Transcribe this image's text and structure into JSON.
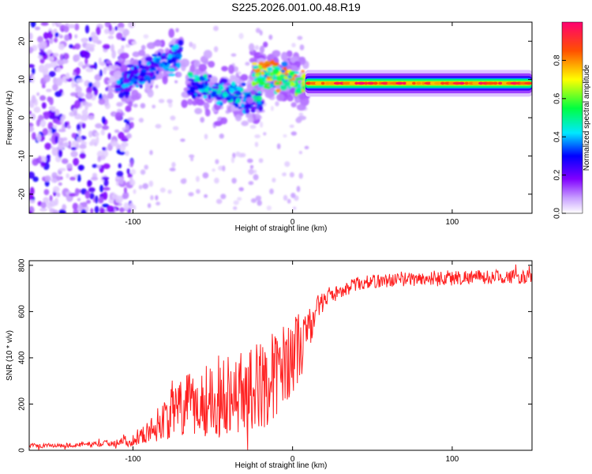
{
  "title": "S225.2026.001.00.48.R19",
  "top_chart": {
    "type": "heatmap",
    "xlabel": "Height of straight line (km)",
    "ylabel": "Frequency (Hz)",
    "xlim": [
      -165,
      150
    ],
    "ylim": [
      -25,
      25
    ],
    "xticks": [
      -100,
      0,
      100
    ],
    "yticks": [
      -20,
      -10,
      0,
      10,
      20
    ],
    "colorbar": {
      "label": "Normalized spectral amplitude",
      "range": [
        0,
        1
      ],
      "ticks": [
        0.0,
        0.2,
        0.4,
        0.6,
        0.8
      ],
      "colors": [
        "#ffffff",
        "#9a00ff",
        "#0000ff",
        "#00ffff",
        "#00ff00",
        "#ffff00",
        "#ff6600",
        "#ff0066"
      ]
    },
    "features": {
      "left_noise_region": {
        "x_range": [
          -165,
          -100
        ],
        "freq_range": [
          -25,
          25
        ],
        "amplitude": "low"
      },
      "trend_segments": [
        {
          "x_start": -110,
          "x_end": -70,
          "freq_start": 8,
          "freq_end": 17,
          "amplitude": 0.3
        },
        {
          "x_start": -65,
          "x_end": -20,
          "freq_start": 9,
          "freq_end": 4,
          "amplitude": 0.35
        },
        {
          "x_start": -25,
          "x_end": 8,
          "freq_start": 12,
          "freq_end": 9,
          "amplitude": 0.6
        }
      ],
      "stable_band": {
        "x_start": 8,
        "x_end": 150,
        "frequency": 9,
        "peak_amplitude": 0.95
      }
    }
  },
  "bottom_chart": {
    "type": "line",
    "xlabel": "Height of straight line (km)",
    "ylabel": "SNR (10 * v/v)",
    "xlim": [
      -165,
      150
    ],
    "ylim": [
      0,
      820
    ],
    "xticks": [
      -100,
      0,
      100
    ],
    "yticks": [
      0,
      200,
      400,
      600,
      800
    ],
    "series": [
      {
        "name": "SNR",
        "color": "#ff2020",
        "x": [
          -165,
          -140,
          -120,
          -100,
          -90,
          -80,
          -70,
          -60,
          -50,
          -40,
          -30,
          -20,
          -10,
          0,
          5,
          10,
          15,
          20,
          25,
          30,
          40,
          50,
          60,
          70,
          80,
          90,
          100,
          110,
          120,
          130,
          140,
          150
        ],
        "values": [
          20,
          22,
          28,
          45,
          80,
          140,
          180,
          200,
          230,
          250,
          260,
          280,
          330,
          420,
          450,
          520,
          610,
          650,
          670,
          690,
          720,
          730,
          735,
          740,
          740,
          745,
          745,
          750,
          748,
          752,
          750,
          748
        ],
        "noise": [
          8,
          8,
          10,
          20,
          40,
          80,
          110,
          130,
          140,
          150,
          150,
          160,
          160,
          140,
          130,
          80,
          50,
          30,
          30,
          25,
          25,
          25,
          25,
          25,
          25,
          30,
          30,
          25,
          25,
          25,
          25,
          25
        ]
      }
    ]
  }
}
